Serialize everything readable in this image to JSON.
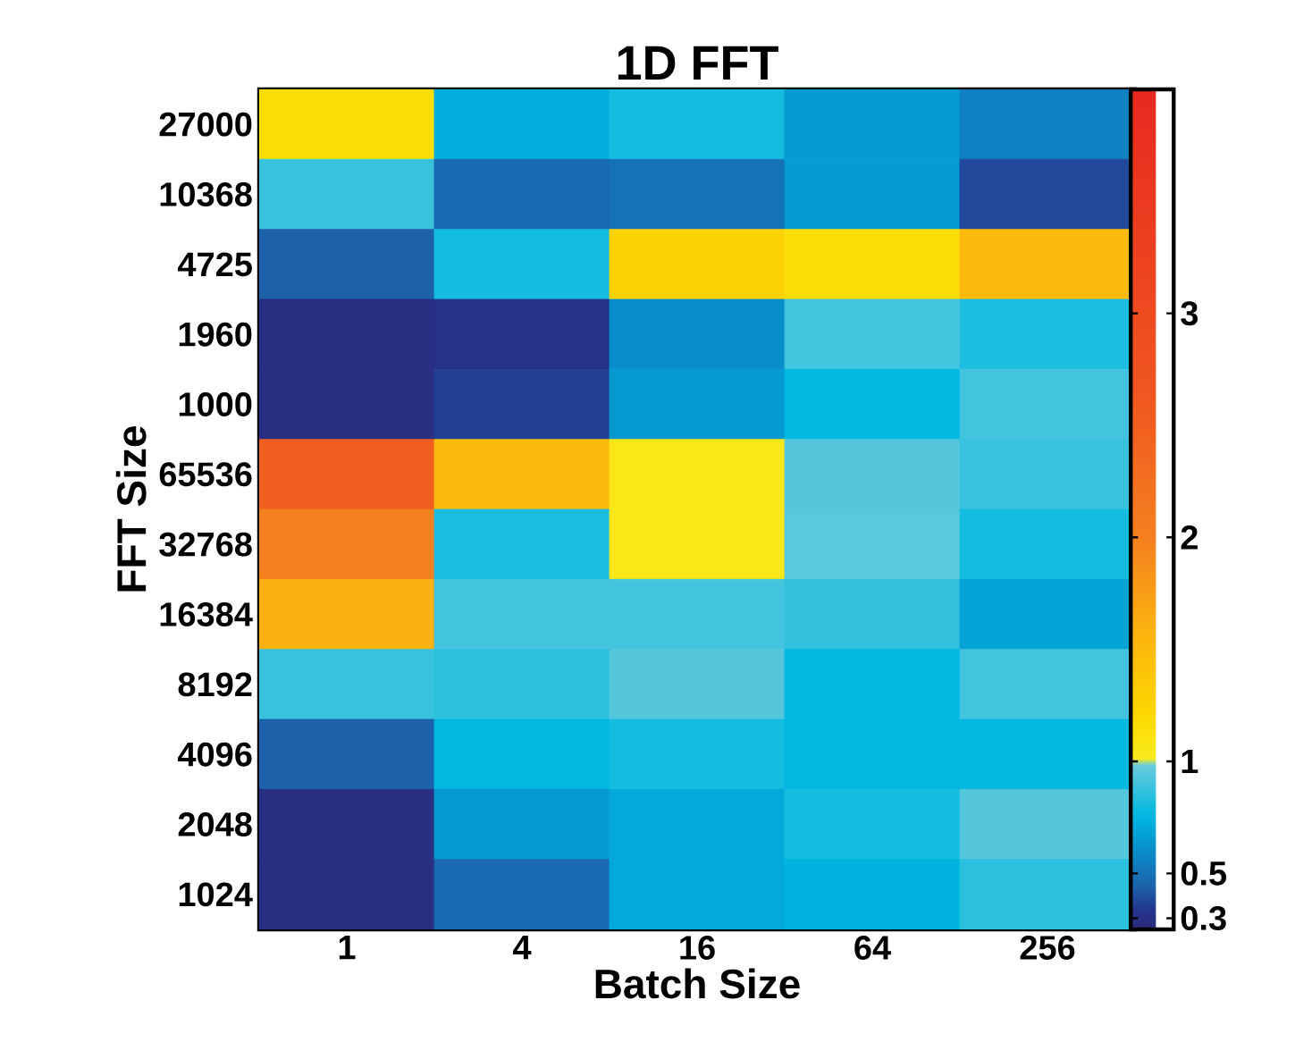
{
  "chart_data": {
    "type": "heatmap",
    "title": "1D FFT",
    "xlabel": "Batch Size",
    "ylabel": "FFT Size",
    "categories": [
      "1",
      "4",
      "16",
      "64",
      "256"
    ],
    "y_categories": [
      "27000",
      "10368",
      "4725",
      "1960",
      "1000",
      "65536",
      "32768",
      "16384",
      "8192",
      "4096",
      "2048",
      "1024"
    ],
    "cells": [
      [
        1.15,
        0.72,
        0.8,
        0.65,
        0.55
      ],
      [
        0.88,
        0.47,
        0.5,
        0.65,
        0.38
      ],
      [
        0.44,
        0.8,
        1.25,
        1.15,
        1.5
      ],
      [
        0.28,
        0.31,
        0.6,
        0.9,
        0.82
      ],
      [
        0.28,
        0.36,
        0.64,
        0.76,
        0.9
      ],
      [
        2.5,
        1.5,
        1.05,
        0.94,
        0.88
      ],
      [
        2.0,
        0.82,
        1.05,
        0.95,
        0.8
      ],
      [
        1.6,
        0.9,
        0.9,
        0.87,
        0.68
      ],
      [
        0.88,
        0.85,
        0.94,
        0.76,
        0.9
      ],
      [
        0.44,
        0.76,
        0.8,
        0.76,
        0.76
      ],
      [
        0.28,
        0.64,
        0.7,
        0.8,
        0.94
      ],
      [
        0.28,
        0.47,
        0.7,
        0.74,
        0.85
      ]
    ],
    "clim": [
      0.25,
      4
    ],
    "cticks": [
      0.3,
      0.5,
      1,
      2,
      3
    ]
  }
}
